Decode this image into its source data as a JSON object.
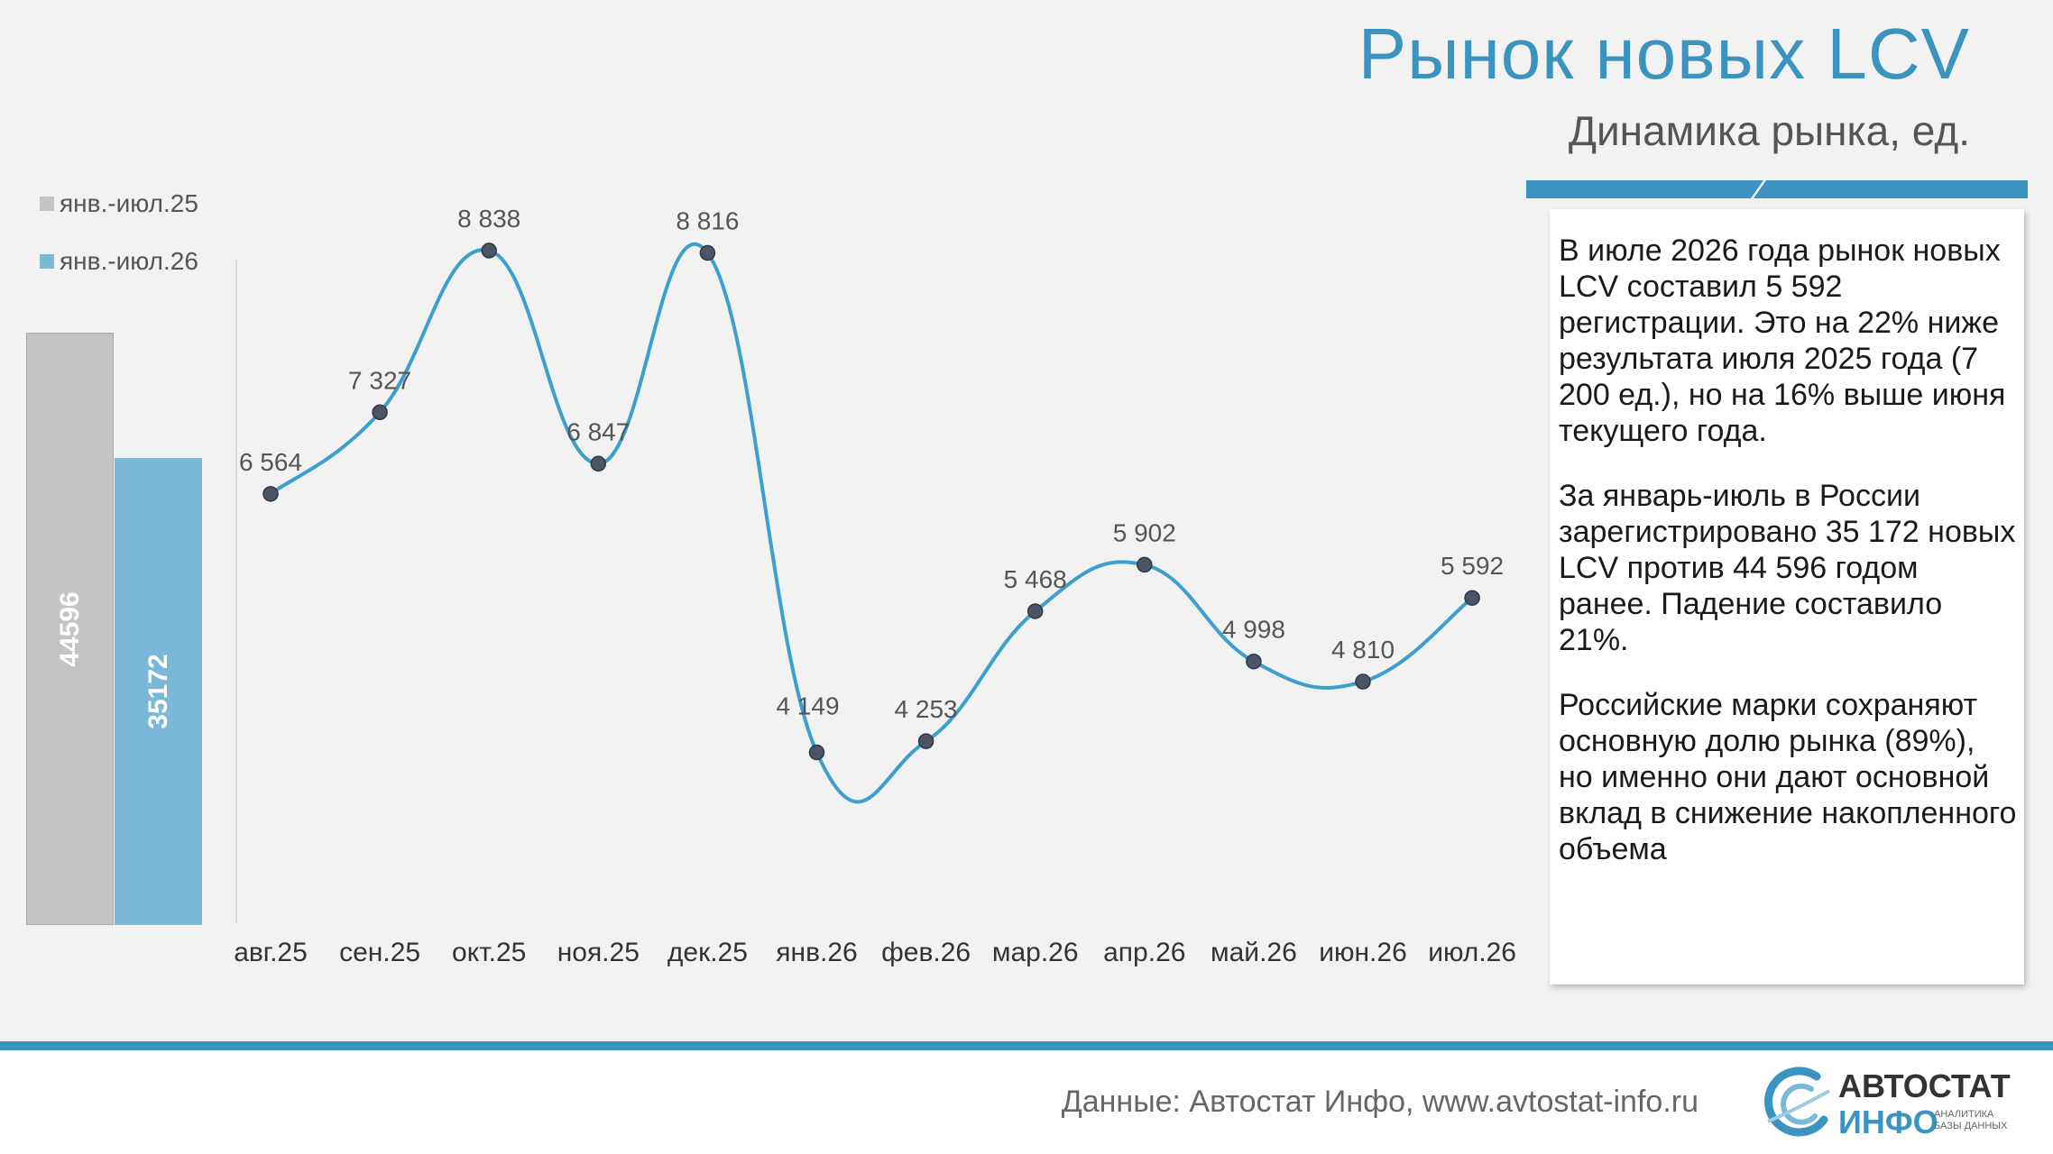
{
  "header": {
    "title": "Рынок новых LCV",
    "subtitle": "Динамика рынка, ед."
  },
  "commentary": {
    "p1": "В июле 2026 года рынок новых LCV составил 5 592 регистрации. Это на 22% ниже результата июля 2025 года (7 200 ед.), но на 16% выше июня текущего года.",
    "p2": "За январь-июль в России зарегистрировано 35 172 новых LCV против 44 596 годом ранее. Падение составило 21%.",
    "p3": "Российские марки сохраняют основную долю рынка (89%), но именно они дают основной вклад в снижение накопленного объема"
  },
  "footer": {
    "source": "Данные: Автостат Инфо, www.avtostat-info.ru",
    "logo_top": "АВТОСТАТ",
    "logo_bottom": "ИНФО",
    "logo_tag_1": "АНАЛИТИКА",
    "logo_tag_2": "БАЗЫ ДАННЫХ"
  },
  "colors": {
    "accent": "#3b93c0",
    "line": "#3d9fcf",
    "bar_prev": "#c4c4c4",
    "bar_curr": "#7ab8d9"
  },
  "chart_data": [
    {
      "type": "bar",
      "categories": [
        "янв.-июл.25",
        "янв.-июл.26"
      ],
      "values": [
        44596,
        35172
      ],
      "value_labels": [
        "44596",
        "35172"
      ],
      "legend": [
        "янв.-июл.25",
        "янв.-июл.26"
      ],
      "legend_position": "top-left"
    },
    {
      "type": "line",
      "categories": [
        "авг.25",
        "сен.25",
        "окт.25",
        "ноя.25",
        "дек.25",
        "янв.26",
        "фев.26",
        "мар.26",
        "апр.26",
        "май.26",
        "июн.26",
        "июл.26"
      ],
      "values": [
        6564,
        7327,
        8838,
        6847,
        8816,
        4149,
        4253,
        5468,
        5902,
        4998,
        4810,
        5592
      ],
      "data_labels": [
        "6 564",
        "7 327",
        "8 838",
        "6 847",
        "8 816",
        "4 149",
        "4 253",
        "5 468",
        "5 902",
        "4 998",
        "4 810",
        "5 592"
      ],
      "smooth": true,
      "markers": true,
      "grid": false
    }
  ]
}
